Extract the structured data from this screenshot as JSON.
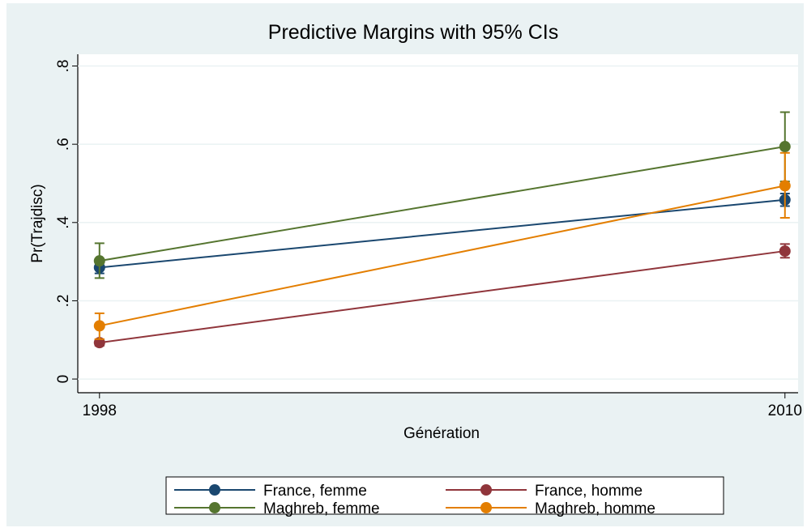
{
  "chart_data": {
    "type": "line",
    "title": "Predictive Margins with 95% CIs",
    "x_label": "Génération",
    "y_label": "Pr(Trajdisc)",
    "x": [
      1998,
      2010
    ],
    "xlim": [
      1997.62,
      2010.23
    ],
    "xticks": [
      1998,
      2010
    ],
    "ylim": [
      -0.035,
      0.83
    ],
    "yticks": [
      0,
      {
        "value": 0.2,
        "label": ".2"
      },
      {
        "value": 0.4,
        "label": ".4"
      },
      {
        "value": 0.6,
        "label": ".6"
      },
      {
        "value": 0.8,
        "label": ".8"
      }
    ],
    "grid": true,
    "legend": "bottom",
    "series": [
      {
        "name": "France, femme",
        "color": "#1a476f",
        "values": [
          0.285,
          0.458
        ],
        "lower": [
          0.27,
          0.442
        ],
        "upper": [
          0.3,
          0.474
        ]
      },
      {
        "name": "France, homme",
        "color": "#90353b",
        "values": [
          0.093,
          0.327
        ],
        "lower": [
          0.085,
          0.31
        ],
        "upper": [
          0.101,
          0.345
        ]
      },
      {
        "name": "Maghreb, femme",
        "color": "#55752f",
        "values": [
          0.302,
          0.594
        ],
        "lower": [
          0.258,
          0.505
        ],
        "upper": [
          0.347,
          0.682
        ]
      },
      {
        "name": "Maghreb, homme",
        "color": "#e37e00",
        "values": [
          0.136,
          0.494
        ],
        "lower": [
          0.102,
          0.412
        ],
        "upper": [
          0.168,
          0.578
        ]
      }
    ]
  }
}
